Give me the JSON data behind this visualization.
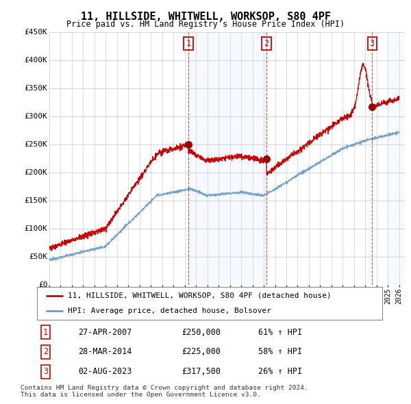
{
  "title": "11, HILLSIDE, WHITWELL, WORKSOP, S80 4PF",
  "subtitle": "Price paid vs. HM Land Registry's House Price Index (HPI)",
  "ylim": [
    0,
    450000
  ],
  "yticks": [
    0,
    50000,
    100000,
    150000,
    200000,
    250000,
    300000,
    350000,
    400000,
    450000
  ],
  "ytick_labels": [
    "£0",
    "£50K",
    "£100K",
    "£150K",
    "£200K",
    "£250K",
    "£300K",
    "£350K",
    "£400K",
    "£450K"
  ],
  "xmin": 1995.0,
  "xmax": 2026.5,
  "red_color": "#cc0000",
  "blue_color": "#6699cc",
  "sale1_x": 2007.32,
  "sale1_y": 250000,
  "sale2_x": 2014.24,
  "sale2_y": 225000,
  "sale3_x": 2023.59,
  "sale3_y": 317500,
  "legend_red": "11, HILLSIDE, WHITWELL, WORKSOP, S80 4PF (detached house)",
  "legend_blue": "HPI: Average price, detached house, Bolsover",
  "table_rows": [
    [
      "1",
      "27-APR-2007",
      "£250,000",
      "61% ↑ HPI"
    ],
    [
      "2",
      "28-MAR-2014",
      "£225,000",
      "58% ↑ HPI"
    ],
    [
      "3",
      "02-AUG-2023",
      "£317,500",
      "26% ↑ HPI"
    ]
  ],
  "footnote1": "Contains HM Land Registry data © Crown copyright and database right 2024.",
  "footnote2": "This data is licensed under the Open Government Licence v3.0.",
  "plot_bg": "#ffffff",
  "shade_color": "#ddeeff"
}
